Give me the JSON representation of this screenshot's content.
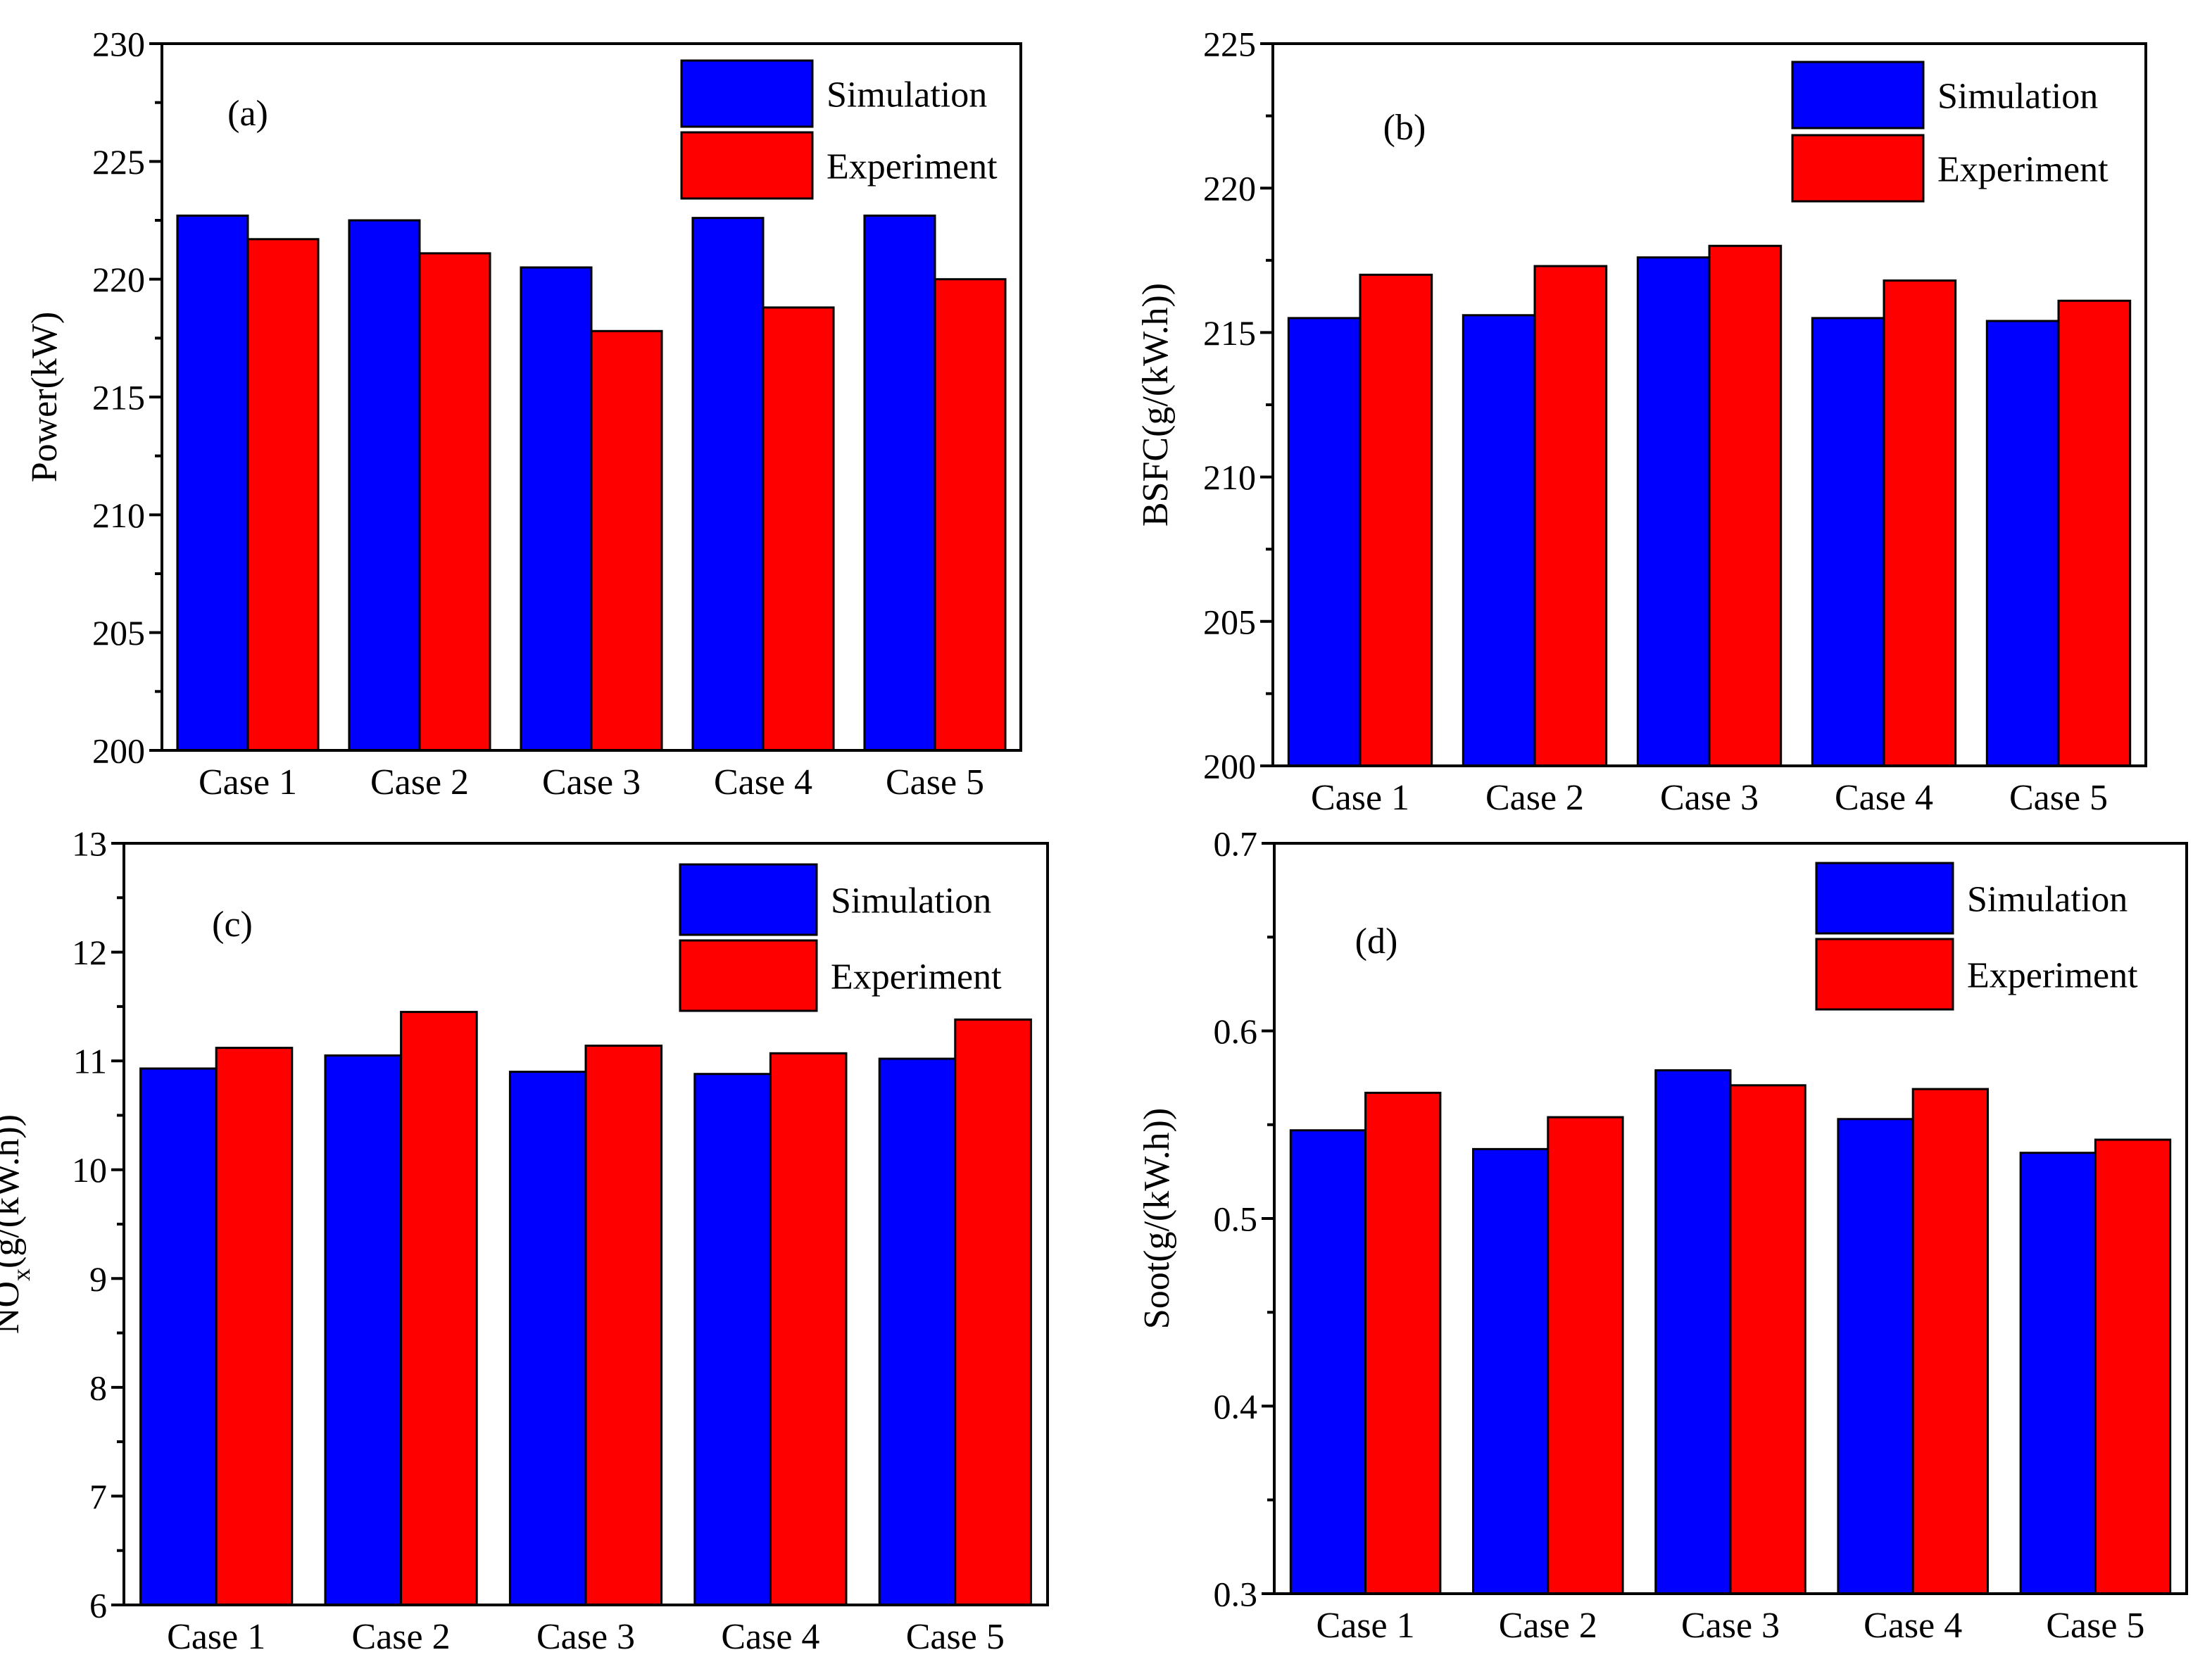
{
  "colors": {
    "simulation": "#0000ff",
    "experiment": "#ff0000",
    "axis": "#000000"
  },
  "chart_data": [
    {
      "type": "bar",
      "panel_label": "(a)",
      "ylabel": "Power(kW)",
      "ylim": [
        200,
        230
      ],
      "yticks": [
        200,
        205,
        210,
        215,
        220,
        225,
        230
      ],
      "ytick_labels": [
        "200",
        "205",
        "210",
        "215",
        "220",
        "225",
        "230"
      ],
      "categories": [
        "Case 1",
        "Case 2",
        "Case 3",
        "Case 4",
        "Case 5"
      ],
      "series": [
        {
          "name": "Simulation",
          "color": "#0000ff",
          "values": [
            222.7,
            222.5,
            220.5,
            222.6,
            222.7
          ]
        },
        {
          "name": "Experiment",
          "color": "#ff0000",
          "values": [
            221.7,
            221.1,
            217.8,
            218.8,
            220.0
          ]
        }
      ],
      "legend_position": "top-right"
    },
    {
      "type": "bar",
      "panel_label": "(b)",
      "ylabel": "BSFC(g/(kW.h))",
      "ylim": [
        200,
        225
      ],
      "yticks": [
        200,
        205,
        210,
        215,
        220,
        225
      ],
      "ytick_labels": [
        "200",
        "205",
        "210",
        "215",
        "220",
        "225"
      ],
      "categories": [
        "Case 1",
        "Case 2",
        "Case 3",
        "Case 4",
        "Case 5"
      ],
      "series": [
        {
          "name": "Simulation",
          "color": "#0000ff",
          "values": [
            215.5,
            215.6,
            217.6,
            215.5,
            215.4
          ]
        },
        {
          "name": "Experiment",
          "color": "#ff0000",
          "values": [
            217.0,
            217.3,
            218.0,
            216.8,
            216.1
          ]
        }
      ],
      "legend_position": "top-right"
    },
    {
      "type": "bar",
      "panel_label": "(c)",
      "ylabel_main": "NO",
      "ylabel_sub": "x",
      "ylabel_tail": "(g/(kW.h))",
      "ylim": [
        6,
        13
      ],
      "yticks": [
        6,
        7,
        8,
        9,
        10,
        11,
        12,
        13
      ],
      "ytick_labels": [
        "6",
        "7",
        "8",
        "9",
        "10",
        "11",
        "12",
        "13"
      ],
      "categories": [
        "Case 1",
        "Case 2",
        "Case 3",
        "Case 4",
        "Case 5"
      ],
      "series": [
        {
          "name": "Simulation",
          "color": "#0000ff",
          "values": [
            10.93,
            11.05,
            10.9,
            10.88,
            11.02
          ]
        },
        {
          "name": "Experiment",
          "color": "#ff0000",
          "values": [
            11.12,
            11.45,
            11.14,
            11.07,
            11.38
          ]
        }
      ],
      "legend_position": "top-right"
    },
    {
      "type": "bar",
      "panel_label": "(d)",
      "ylabel": "Soot(g/(kW.h))",
      "ylim": [
        0.3,
        0.7
      ],
      "yticks": [
        0.3,
        0.4,
        0.5,
        0.6,
        0.7
      ],
      "ytick_labels": [
        "0.3",
        "0.4",
        "0.5",
        "0.6",
        "0.7"
      ],
      "categories": [
        "Case 1",
        "Case 2",
        "Case 3",
        "Case 4",
        "Case 5"
      ],
      "series": [
        {
          "name": "Simulation",
          "color": "#0000ff",
          "values": [
            0.547,
            0.537,
            0.579,
            0.553,
            0.535
          ]
        },
        {
          "name": "Experiment",
          "color": "#ff0000",
          "values": [
            0.567,
            0.554,
            0.571,
            0.569,
            0.542
          ]
        }
      ],
      "legend_position": "top-right"
    }
  ]
}
